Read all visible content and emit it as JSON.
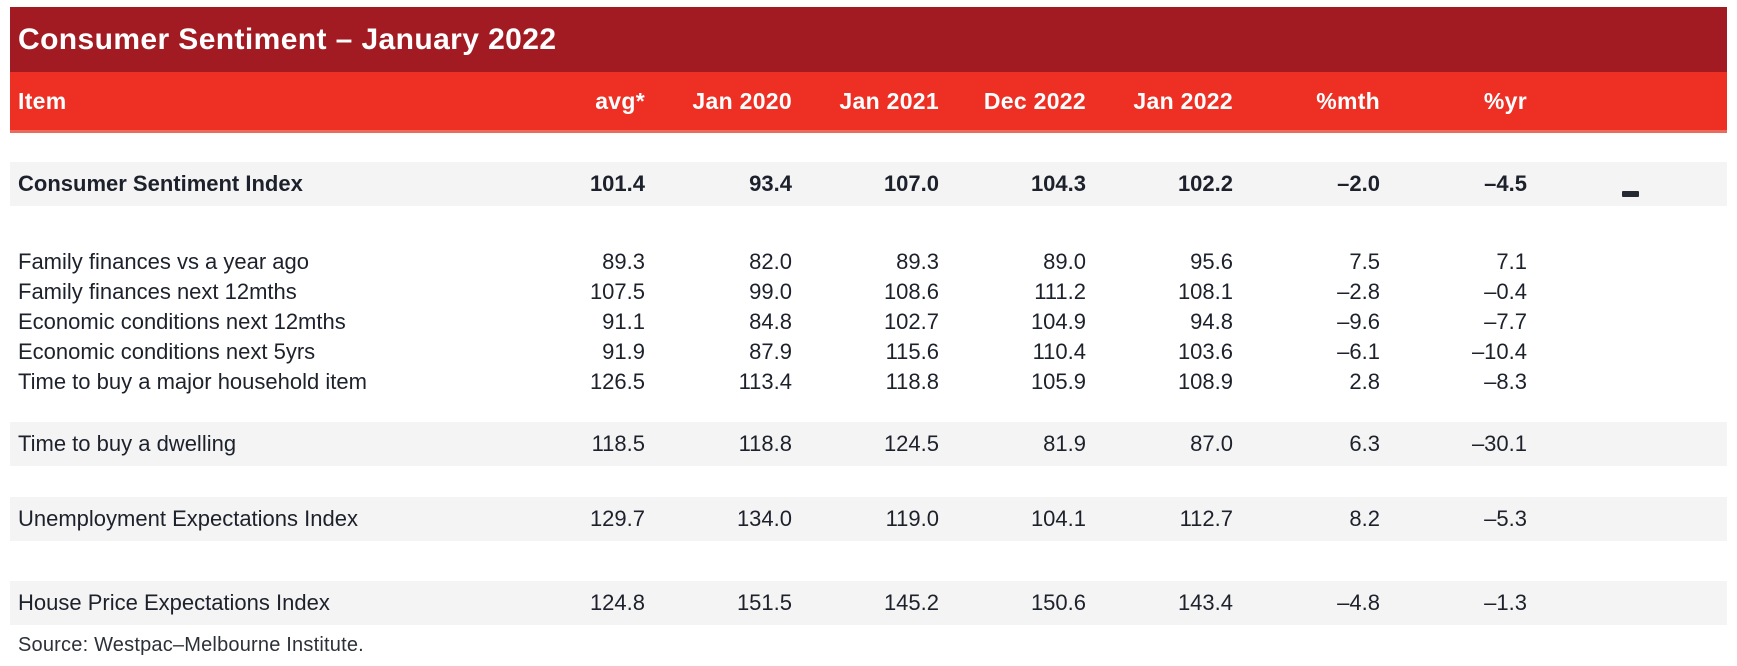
{
  "title": "Consumer Sentiment – January 2022",
  "table": {
    "columns": [
      "Item",
      "avg*",
      "Jan 2020",
      "Jan 2021",
      "Dec 2022",
      "Jan 2022",
      "%mth",
      "%yr"
    ],
    "rows": [
      {
        "label": "Consumer Sentiment Index",
        "bold": true,
        "shaded": true,
        "values": [
          "101.4",
          "93.4",
          "107.0",
          "104.3",
          "102.2",
          "–2.0",
          "–4.5"
        ]
      },
      {
        "label": "Family finances vs a year ago",
        "bold": false,
        "shaded": false,
        "values": [
          "89.3",
          "82.0",
          "89.3",
          "89.0",
          "95.6",
          "7.5",
          "7.1"
        ]
      },
      {
        "label": "Family finances next 12mths",
        "bold": false,
        "shaded": false,
        "values": [
          "107.5",
          "99.0",
          "108.6",
          "111.2",
          "108.1",
          "–2.8",
          "–0.4"
        ]
      },
      {
        "label": "Economic conditions next 12mths",
        "bold": false,
        "shaded": false,
        "values": [
          "91.1",
          "84.8",
          "102.7",
          "104.9",
          "94.8",
          "–9.6",
          "–7.7"
        ]
      },
      {
        "label": "Economic conditions next 5yrs",
        "bold": false,
        "shaded": false,
        "values": [
          "91.9",
          "87.9",
          "115.6",
          "110.4",
          "103.6",
          "–6.1",
          "–10.4"
        ]
      },
      {
        "label": "Time to buy a major household item",
        "bold": false,
        "shaded": false,
        "values": [
          "126.5",
          "113.4",
          "118.8",
          "105.9",
          "108.9",
          "2.8",
          "–8.3"
        ]
      },
      {
        "label": "Time to buy a dwelling",
        "bold": false,
        "shaded": true,
        "values": [
          "118.5",
          "118.8",
          "124.5",
          "81.9",
          "87.0",
          "6.3",
          "–30.1"
        ]
      },
      {
        "label": "Unemployment Expectations Index",
        "bold": false,
        "shaded": true,
        "values": [
          "129.7",
          "134.0",
          "119.0",
          "104.1",
          "112.7",
          "8.2",
          "–5.3"
        ]
      },
      {
        "label": "House Price Expectations Index",
        "bold": false,
        "shaded": true,
        "values": [
          "124.8",
          "151.5",
          "145.2",
          "150.6",
          "143.4",
          "–4.8",
          "–1.3"
        ]
      }
    ]
  },
  "source": "Source: Westpac–Melbourne Institute.",
  "colors": {
    "title_bar": "#A21B22",
    "header_bar": "#EE3024",
    "header_underline": "#EC6A5C",
    "row_shade": "#F4F4F4",
    "text": "#1D212B",
    "header_text": "#FFFFFF"
  }
}
